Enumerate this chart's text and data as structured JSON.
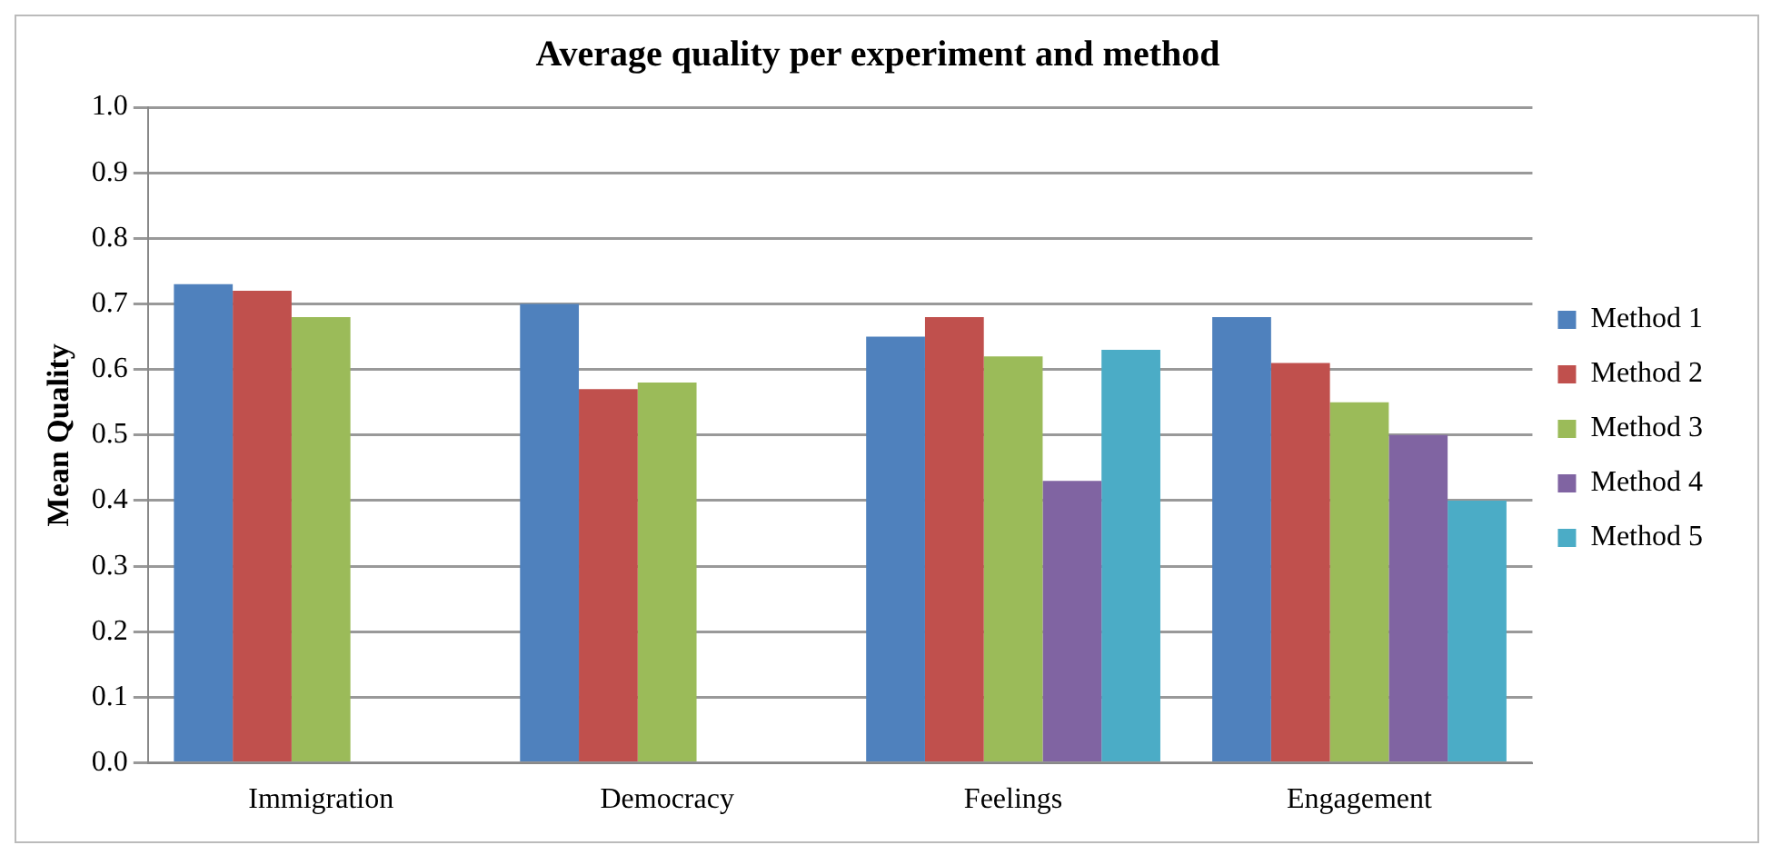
{
  "chart_data": {
    "type": "bar",
    "title": "Average quality per experiment and method",
    "ylabel": "Mean Quality",
    "categories": [
      "Immigration",
      "Democracy",
      "Feelings",
      "Engagement"
    ],
    "series": [
      {
        "name": "Method 1",
        "color": "#4f81bd",
        "values": [
          0.73,
          0.7,
          0.65,
          0.68
        ]
      },
      {
        "name": "Method 2",
        "color": "#c0504d",
        "values": [
          0.72,
          0.57,
          0.68,
          0.61
        ]
      },
      {
        "name": "Method 3",
        "color": "#9bbb59",
        "values": [
          0.68,
          0.58,
          0.62,
          0.55
        ]
      },
      {
        "name": "Method 4",
        "color": "#8064a2",
        "values": [
          null,
          null,
          0.43,
          0.5
        ]
      },
      {
        "name": "Method 5",
        "color": "#4bacc6",
        "values": [
          null,
          null,
          0.63,
          0.4
        ]
      }
    ],
    "ylim": [
      0,
      1.0
    ],
    "yticks": [
      {
        "value": 0,
        "label": "0.0"
      },
      {
        "value": 0.1,
        "label": "0.1"
      },
      {
        "value": 0.2,
        "label": "0.2"
      },
      {
        "value": 0.3,
        "label": "0.3"
      },
      {
        "value": 0.4,
        "label": "0.4"
      },
      {
        "value": 0.5,
        "label": "0.5"
      },
      {
        "value": 0.6,
        "label": "0.6"
      },
      {
        "value": 0.7,
        "label": "0.7"
      },
      {
        "value": 0.8,
        "label": "0.8"
      },
      {
        "value": 0.9,
        "label": "0.9"
      },
      {
        "value": 1.0,
        "label": "1.0"
      }
    ],
    "grid": "y",
    "legend": "right"
  }
}
